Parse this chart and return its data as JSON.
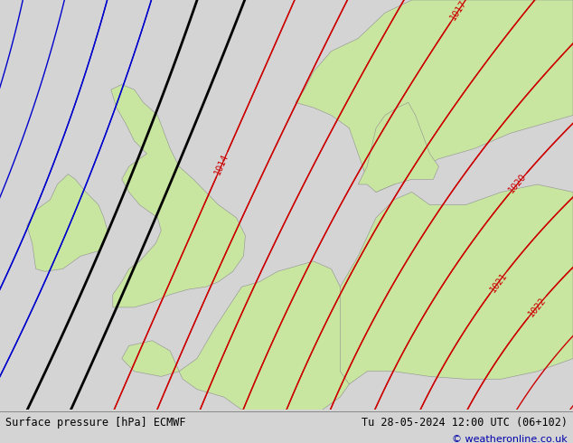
{
  "bottom_left_label": "Surface pressure [hPa] ECMWF",
  "bottom_right_label": "Tu 28-05-2024 12:00 UTC (06+102)",
  "copyright": "© weatheronline.co.uk",
  "bg_color": "#d4d4d4",
  "land_color": "#c8e6a0",
  "blue_isobar_color": "#0000cc",
  "black_isobar_color": "#000000",
  "red_isobar_color": "#cc0000",
  "lon_min": -12,
  "lon_max": 20,
  "lat_min": 46,
  "lat_max": 62
}
